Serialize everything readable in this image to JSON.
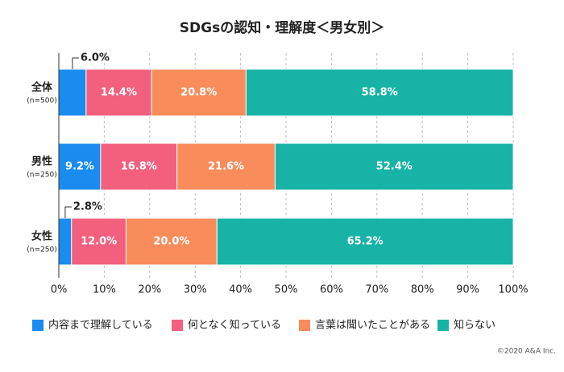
{
  "chart_data": {
    "type": "stacked-bar-horizontal",
    "title": "SDGsの認知・理解度＜男女別＞",
    "categories": [
      "全体",
      "男性",
      "女性"
    ],
    "sample_sizes": [
      "(n=500)",
      "(n=250)",
      "(n=250)"
    ],
    "series": [
      {
        "name": "内容まで理解している",
        "color": "#1a8cf0",
        "values": [
          6.0,
          9.2,
          2.8
        ],
        "value_labels": [
          "6.0%",
          "9.2%",
          "2.8%"
        ]
      },
      {
        "name": "何となく知っている",
        "color": "#f2607e",
        "values": [
          14.4,
          16.8,
          12.0
        ],
        "value_labels": [
          "14.4%",
          "16.8%",
          "12.0%"
        ]
      },
      {
        "name": "言葉は聞いたことがある",
        "color": "#f98c5b",
        "values": [
          20.8,
          21.6,
          20.0
        ],
        "value_labels": [
          "20.8%",
          "21.6%",
          "20.0%"
        ]
      },
      {
        "name": "知らない",
        "color": "#16b3a6",
        "values": [
          58.8,
          52.4,
          65.2
        ],
        "value_labels": [
          "58.8%",
          "52.4%",
          "65.2%"
        ]
      }
    ],
    "xlim": [
      0,
      100
    ],
    "xticks": [
      {
        "value": 0,
        "label": "0%"
      },
      {
        "value": 10,
        "label": "10%"
      },
      {
        "value": 20,
        "label": "20%"
      },
      {
        "value": 30,
        "label": "30%"
      },
      {
        "value": 40,
        "label": "40%"
      },
      {
        "value": 50,
        "label": "50%"
      },
      {
        "value": 60,
        "label": "60%"
      },
      {
        "value": 70,
        "label": "70%"
      },
      {
        "value": 80,
        "label": "80%"
      },
      {
        "value": 90,
        "label": "90%"
      },
      {
        "value": 100,
        "label": "100%"
      }
    ],
    "grid": true,
    "credit": "©2020 A&A Inc."
  }
}
